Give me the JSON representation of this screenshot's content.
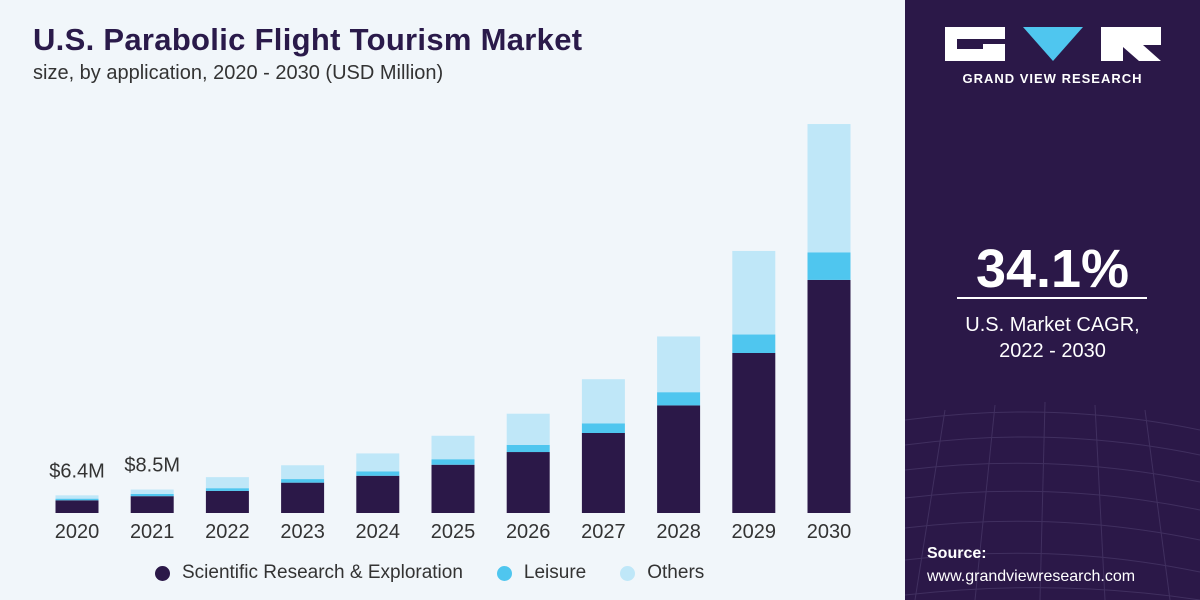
{
  "header": {
    "title": "U.S. Parabolic Flight Tourism Market",
    "subtitle": "size, by application, 2020 - 2030 (USD Million)"
  },
  "chart_data": {
    "type": "bar",
    "stacked": true,
    "categories": [
      "2020",
      "2021",
      "2022",
      "2023",
      "2024",
      "2025",
      "2026",
      "2027",
      "2028",
      "2029",
      "2030"
    ],
    "series": [
      {
        "name": "Scientific Research & Exploration",
        "color": "#2b1848",
        "values": [
          4.6,
          6.1,
          8.0,
          11.0,
          13.5,
          17.5,
          22.1,
          29.0,
          39.0,
          58.0,
          84.5
        ]
      },
      {
        "name": "Leisure",
        "color": "#4fc6ef",
        "values": [
          0.6,
          0.8,
          1.0,
          1.3,
          1.6,
          2.0,
          2.6,
          3.5,
          4.8,
          6.7,
          10.0
        ]
      },
      {
        "name": "Others",
        "color": "#bfe7f8",
        "values": [
          1.2,
          1.6,
          4.0,
          5.0,
          6.5,
          8.5,
          11.3,
          16.0,
          20.2,
          30.3,
          46.5
        ]
      }
    ],
    "data_labels": [
      {
        "category": "2020",
        "text": "$6.4M"
      },
      {
        "category": "2021",
        "text": "$8.5M"
      }
    ],
    "ylim": [
      0,
      145
    ],
    "grid": false,
    "legend_position": "bottom"
  },
  "legend": {
    "items": [
      {
        "label": "Scientific Research & Exploration",
        "color": "#2b1848"
      },
      {
        "label": "Leisure",
        "color": "#4fc6ef"
      },
      {
        "label": "Others",
        "color": "#bfe7f8"
      }
    ]
  },
  "sidebar": {
    "brand": "GRAND VIEW RESEARCH",
    "cagr_value": "34.1%",
    "cagr_label_line1": "U.S. Market CAGR,",
    "cagr_label_line2": "2022 - 2030",
    "source_label": "Source:",
    "source_url": "www.grandviewresearch.com"
  }
}
